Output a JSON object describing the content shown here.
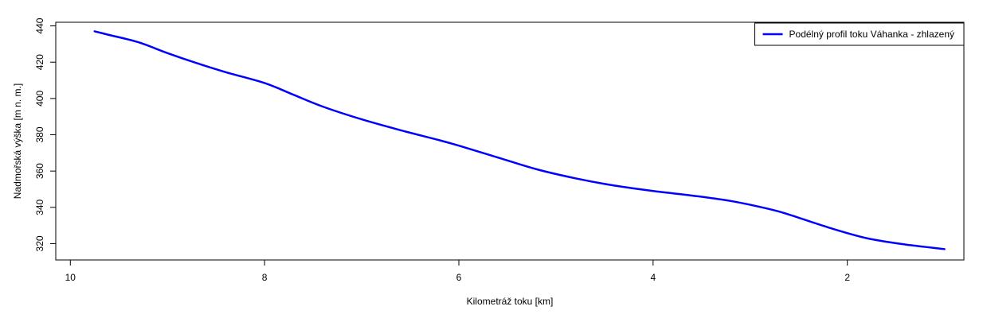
{
  "chart_data": {
    "type": "line",
    "title": "",
    "xlabel": "Kilometráž toku [km]",
    "ylabel": "Nadmořská výška [m n. m.]",
    "xlim": [
      10.15,
      0.8
    ],
    "ylim": [
      311,
      442
    ],
    "x_reversed": true,
    "x_ticks": [
      10,
      8,
      6,
      4,
      2
    ],
    "y_ticks": [
      320,
      340,
      360,
      380,
      400,
      420,
      440
    ],
    "grid": false,
    "legend": {
      "position": "top-right"
    },
    "series": [
      {
        "name": "Podélný profil toku Váhanka - zhlazený",
        "color": "#0000ff",
        "x": [
          9.75,
          9.6,
          9.3,
          9.0,
          8.7,
          8.4,
          8.0,
          7.7,
          7.4,
          7.0,
          6.6,
          6.2,
          6.0,
          5.6,
          5.2,
          4.8,
          4.4,
          4.0,
          3.6,
          3.2,
          2.8,
          2.6,
          2.2,
          1.8,
          1.4,
          1.0
        ],
        "y": [
          437,
          435,
          431,
          425,
          419.5,
          414.5,
          408.5,
          402,
          395.5,
          388.5,
          382.5,
          377,
          374,
          367.5,
          361,
          356,
          352,
          349,
          346.5,
          343.5,
          339,
          336,
          329,
          323,
          319.5,
          317
        ]
      }
    ]
  }
}
